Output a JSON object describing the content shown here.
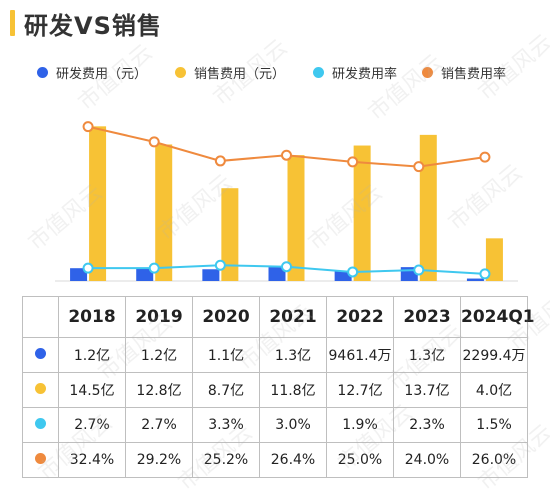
{
  "title": "研发VS销售",
  "colors": {
    "rd_expense": "#2f62e8",
    "sales_expense": "#f7c235",
    "rd_rate": "#3fc8ef",
    "sales_rate": "#ef8a3e",
    "title_bar": "#f7c235"
  },
  "legend": [
    {
      "label": "研发费用（元）",
      "color": "#2f62e8"
    },
    {
      "label": "销售费用（元）",
      "color": "#f7c235"
    },
    {
      "label": "研发费用率",
      "color": "#3fc8ef"
    },
    {
      "label": "销售费用率",
      "color": "#ef8a3e"
    }
  ],
  "table": {
    "header": [
      "2018",
      "2019",
      "2020",
      "2021",
      "2022",
      "2023",
      "2024Q1"
    ],
    "rows": [
      {
        "color": "#2f62e8",
        "cells": [
          "1.2亿",
          "1.2亿",
          "1.1亿",
          "1.3亿",
          "9461.4万",
          "1.3亿",
          "2299.4万"
        ]
      },
      {
        "color": "#f7c235",
        "cells": [
          "14.5亿",
          "12.8亿",
          "8.7亿",
          "11.8亿",
          "12.7亿",
          "13.7亿",
          "4.0亿"
        ]
      },
      {
        "color": "#3fc8ef",
        "cells": [
          "2.7%",
          "2.7%",
          "3.3%",
          "3.0%",
          "1.9%",
          "2.3%",
          "1.5%"
        ]
      },
      {
        "color": "#ef8a3e",
        "cells": [
          "32.4%",
          "29.2%",
          "25.2%",
          "26.4%",
          "25.0%",
          "24.0%",
          "26.0%"
        ]
      }
    ]
  },
  "watermark": "市值风云",
  "chart_data": {
    "type": "bar",
    "title": "研发VS销售",
    "categories": [
      "2018",
      "2019",
      "2020",
      "2021",
      "2022",
      "2023",
      "2024Q1"
    ],
    "series": [
      {
        "name": "研发费用（元）",
        "kind": "bar",
        "axis": "left",
        "unit": "亿",
        "values": [
          1.2,
          1.2,
          1.1,
          1.3,
          0.94614,
          1.3,
          0.22994
        ]
      },
      {
        "name": "销售费用（元）",
        "kind": "bar",
        "axis": "left",
        "unit": "亿",
        "values": [
          14.5,
          12.8,
          8.7,
          11.8,
          12.7,
          13.7,
          4.0
        ]
      },
      {
        "name": "研发费用率",
        "kind": "line",
        "axis": "right",
        "unit": "%",
        "values": [
          2.7,
          2.7,
          3.3,
          3.0,
          1.9,
          2.3,
          1.5
        ]
      },
      {
        "name": "销售费用率",
        "kind": "line",
        "axis": "right",
        "unit": "%",
        "values": [
          32.4,
          29.2,
          25.2,
          26.4,
          25.0,
          24.0,
          26.0
        ]
      }
    ],
    "legend_position": "top",
    "grid": false
  }
}
